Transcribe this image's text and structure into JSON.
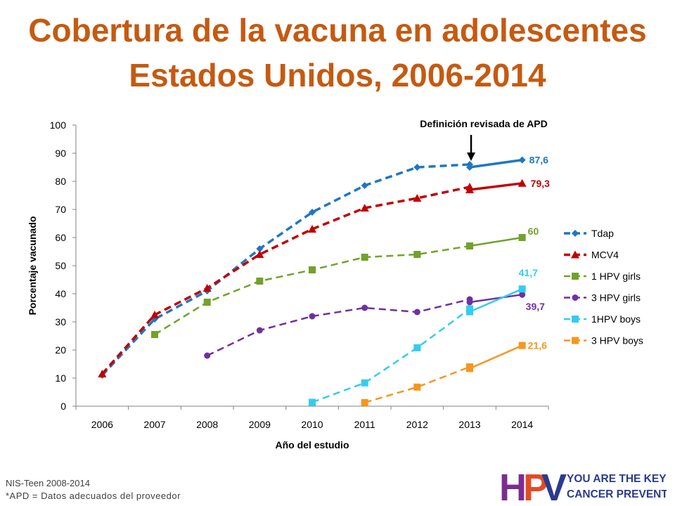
{
  "title_line1": "Cobertura de la vacuna en adolescentes",
  "title_line2": "Estados Unidos, 2006-2014",
  "footnote_source": "NIS-Teen 2008-2014",
  "footnote_apd": "*APD = Datos adecuados del proveedor",
  "logo": {
    "letters": "HPV",
    "line1": "YOU ARE THE KEY TO",
    "line2": "CANCER PREVENTION",
    "colors": {
      "h": "#7b2d8e",
      "p": "#e24b26",
      "v": "#2a3b8f",
      "text": "#2a3b8f"
    }
  },
  "chart_data": {
    "type": "line",
    "xlabel": "Año del estudio",
    "ylabel": "Porcentaje vacunado",
    "x": [
      2006,
      2007,
      2008,
      2009,
      2010,
      2011,
      2012,
      2013,
      2014
    ],
    "ylim": [
      0,
      100
    ],
    "yticks": [
      0,
      10,
      20,
      30,
      40,
      50,
      60,
      70,
      80,
      90,
      100
    ],
    "legend_position": "right",
    "annotation": {
      "text": "Definición revisada de APD",
      "x": 2013,
      "arrow": "down"
    },
    "series": [
      {
        "name": "Tdap",
        "color": "#1f77c2",
        "marker": "diamond",
        "dashed_x": [
          2006,
          2007,
          2008,
          2009,
          2010,
          2011,
          2012,
          2013
        ],
        "solid_x": [
          2013,
          2014
        ],
        "dashed": [
          11,
          31,
          41,
          56,
          69,
          78.5,
          85,
          86
        ],
        "solid": [
          85,
          87.6
        ],
        "end_label": "87,6"
      },
      {
        "name": "MCV4",
        "color": "#c00000",
        "marker": "triangle",
        "dashed_x": [
          2006,
          2007,
          2008,
          2009,
          2010,
          2011,
          2012,
          2013
        ],
        "solid_x": [
          2013,
          2014
        ],
        "dashed": [
          11.5,
          32.5,
          42,
          54,
          63,
          70.5,
          74,
          78
        ],
        "solid": [
          77,
          79.3
        ],
        "end_label": "79,3"
      },
      {
        "name": "1 HPV girls",
        "color": "#71a22a",
        "marker": "square",
        "dashed_x": [
          2007,
          2008,
          2009,
          2010,
          2011,
          2012,
          2013
        ],
        "solid_x": [
          2013,
          2014
        ],
        "dashed": [
          25.5,
          37,
          44.5,
          48.5,
          53,
          54,
          57
        ],
        "solid": [
          57,
          60
        ],
        "end_label": "60"
      },
      {
        "name": "3 HPV girls",
        "color": "#7030a0",
        "marker": "circle",
        "dashed_x": [
          2008,
          2009,
          2010,
          2011,
          2012,
          2013
        ],
        "solid_x": [
          2013,
          2014
        ],
        "dashed": [
          18,
          27,
          32,
          35,
          33.5,
          38
        ],
        "solid": [
          37,
          39.7
        ],
        "end_label": "39,7"
      },
      {
        "name": "1HPV boys",
        "color": "#33ccf2",
        "marker": "square",
        "dashed_x": [
          2010,
          2011,
          2012,
          2013
        ],
        "solid_x": [
          2013,
          2014
        ],
        "dashed": [
          1.4,
          8.3,
          20.8,
          34.6
        ],
        "solid": [
          33.6,
          41.7
        ],
        "end_label": "41,7"
      },
      {
        "name": "3 HPV boys",
        "color": "#f5961e",
        "marker": "square",
        "dashed_x": [
          2011,
          2012,
          2013
        ],
        "solid_x": [
          2013,
          2014
        ],
        "dashed": [
          1.3,
          6.8,
          14
        ],
        "solid": [
          13.4,
          21.6
        ],
        "end_label": "21,6"
      }
    ]
  }
}
